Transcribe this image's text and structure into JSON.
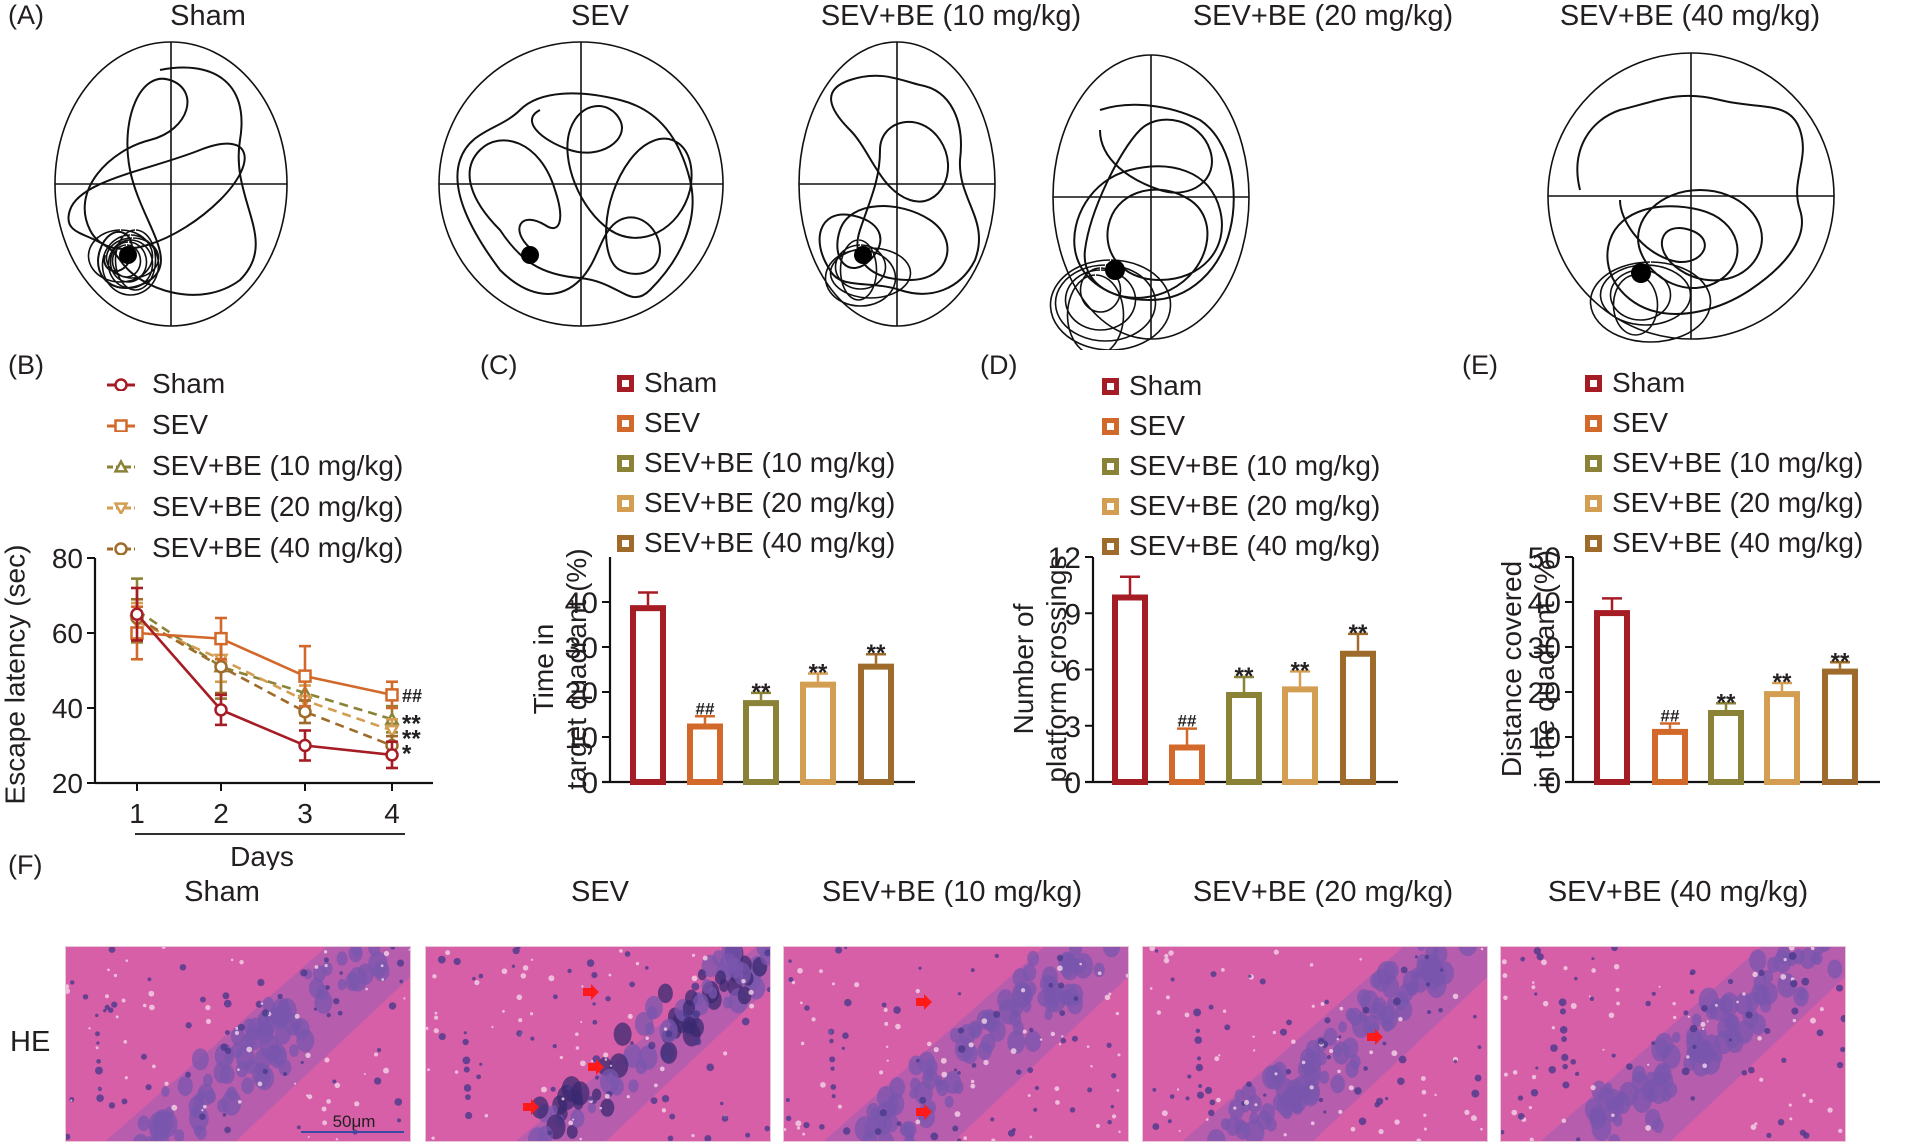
{
  "figure": {
    "groups": [
      {
        "name": "Sham",
        "color": "#a61c24",
        "marker": "circle",
        "dash": false
      },
      {
        "name": "SEV",
        "color": "#d2692a",
        "marker": "square",
        "dash": false
      },
      {
        "name": "SEV+BE (10 mg/kg)",
        "color": "#8a8237",
        "marker": "triangle-up",
        "dash": true
      },
      {
        "name": "SEV+BE (20 mg/kg)",
        "color": "#d49e52",
        "marker": "triangle-down",
        "dash": true
      },
      {
        "name": "SEV+BE (40 mg/kg)",
        "color": "#9e6b2a",
        "marker": "circle",
        "dash": true
      }
    ],
    "panel_a": {
      "letter": "(A)",
      "titles": [
        "Sham",
        "SEV",
        "SEV+BE (10 mg/kg)",
        "SEV+BE (20 mg/kg)",
        "SEV+BE (40 mg/kg)"
      ],
      "description": "Swim path traces in Morris water maze with platform (black dot) in lower-left quadrant"
    },
    "panel_f": {
      "letter": "(F)",
      "row_label": "HE",
      "titles": [
        "Sham",
        "SEV",
        "SEV+BE (10 mg/kg)",
        "SEV+BE (20 mg/kg)",
        "SEV+BE (40 mg/kg)"
      ],
      "scale_bar": "50μm",
      "arrow_counts": [
        0,
        3,
        2,
        1,
        0
      ]
    }
  },
  "chart_data": [
    {
      "id": "B",
      "letter": "(B)",
      "type": "line",
      "title": "",
      "xlabel": "Days",
      "ylabel": "Escape latency (sec)",
      "x": [
        1,
        2,
        3,
        4
      ],
      "xticks": [
        "1",
        "2",
        "3",
        "4"
      ],
      "ylim": [
        20,
        80
      ],
      "yticks": [
        "20",
        "40",
        "60",
        "80"
      ],
      "yticks_values": [
        20,
        40,
        60,
        80
      ],
      "grid": false,
      "legend": "top",
      "series": [
        {
          "name": "Sham",
          "values": [
            65,
            39.5,
            30,
            27.5
          ],
          "errors": [
            7,
            4,
            4,
            3.5
          ]
        },
        {
          "name": "SEV",
          "values": [
            60,
            58.5,
            48.5,
            43.5
          ],
          "errors": [
            7,
            5.5,
            8,
            3.5
          ]
        },
        {
          "name": "SEV+BE (10 mg/kg)",
          "values": [
            66,
            51,
            44,
            37
          ],
          "errors": [
            8.5,
            8.5,
            5,
            3.5
          ]
        },
        {
          "name": "SEV+BE (20 mg/kg)",
          "values": [
            63,
            53,
            42,
            34
          ],
          "errors": [
            5,
            6,
            4,
            3
          ]
        },
        {
          "name": "SEV+BE (40 mg/kg)",
          "values": [
            64,
            51,
            39,
            30
          ],
          "errors": [
            5,
            7,
            3,
            2.5
          ]
        }
      ],
      "annotations": [
        {
          "series": "SEV",
          "text": "##"
        },
        {
          "series": "SEV+BE (10 mg/kg)",
          "text": "**"
        },
        {
          "series": "SEV+BE (20 mg/kg)",
          "text": "**"
        },
        {
          "series": "SEV+BE (40 mg/kg)",
          "text": "*"
        }
      ]
    },
    {
      "id": "C",
      "letter": "(C)",
      "type": "bar",
      "title": "",
      "xlabel": "",
      "ylabel": "Time in target quadrant (%)",
      "ylabel_lines": [
        "Time in",
        "target quadrant (%)"
      ],
      "categories": [
        "Sham",
        "SEV",
        "SEV+BE (10 mg/kg)",
        "SEV+BE (20 mg/kg)",
        "SEV+BE (40 mg/kg)"
      ],
      "values": [
        39.3,
        13.0,
        18.2,
        22.3,
        26.3
      ],
      "errors": [
        2.8,
        1.6,
        1.6,
        1.8,
        2.1
      ],
      "ylim": [
        0,
        50
      ],
      "yticks": [
        "0",
        "10",
        "20",
        "30",
        "40"
      ],
      "yticks_values": [
        0,
        10,
        20,
        30,
        40
      ],
      "grid": false,
      "legend": "top",
      "significance": [
        "",
        "##",
        "**",
        "**",
        "**"
      ]
    },
    {
      "id": "D",
      "letter": "(D)",
      "type": "bar",
      "title": "",
      "xlabel": "",
      "ylabel": "Number of platform crossings",
      "ylabel_lines": [
        "Number of",
        "platform crossings"
      ],
      "categories": [
        "Sham",
        "SEV",
        "SEV+BE (10 mg/kg)",
        "SEV+BE (20 mg/kg)",
        "SEV+BE (40 mg/kg)"
      ],
      "values": [
        10.0,
        2.0,
        4.8,
        5.1,
        7.0
      ],
      "errors": [
        0.95,
        0.85,
        0.8,
        0.8,
        0.9
      ],
      "ylim": [
        0,
        12
      ],
      "yticks": [
        "0",
        "3",
        "6",
        "9",
        "12"
      ],
      "yticks_values": [
        0,
        3,
        6,
        9,
        12
      ],
      "grid": false,
      "legend": "top",
      "significance": [
        "",
        "##",
        "**",
        "**",
        "**"
      ]
    },
    {
      "id": "E",
      "letter": "(E)",
      "type": "bar",
      "title": "",
      "xlabel": "",
      "ylabel": "Distance covered in the quadrant (%)",
      "ylabel_lines": [
        "Distance covered",
        "in the quadrant (%)"
      ],
      "categories": [
        "Sham",
        "SEV",
        "SEV+BE (10 mg/kg)",
        "SEV+BE (20 mg/kg)",
        "SEV+BE (40 mg/kg)"
      ],
      "values": [
        38.2,
        11.8,
        16.0,
        20.2,
        25.2
      ],
      "errors": [
        2.6,
        1.2,
        1.5,
        1.8,
        1.4
      ],
      "ylim": [
        0,
        50
      ],
      "yticks": [
        "0",
        "10",
        "20",
        "30",
        "40",
        "50"
      ],
      "yticks_values": [
        0,
        10,
        20,
        30,
        40,
        50
      ],
      "grid": false,
      "legend": "top",
      "significance": [
        "",
        "##",
        "**",
        "**",
        "**"
      ]
    }
  ]
}
